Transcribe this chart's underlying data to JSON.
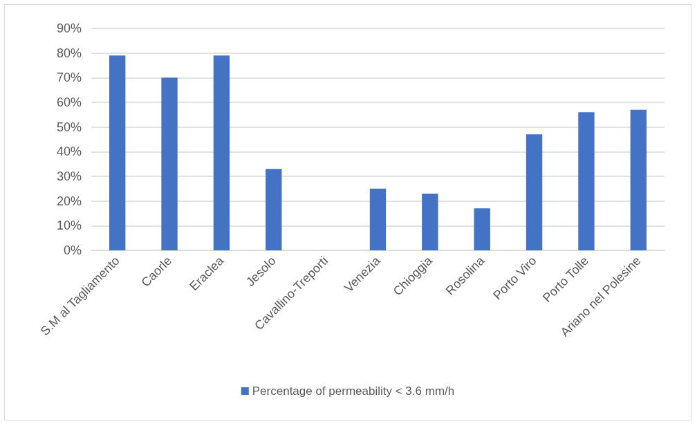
{
  "chart_data": {
    "type": "bar",
    "categories": [
      "S.M al Tagliamento",
      "Caorle",
      "Eraclea",
      "Jesolo",
      "Cavallino-Treporti",
      "Venezia",
      "Chioggia",
      "Rosolina",
      "Porto Viro",
      "Porto Tolle",
      "Ariano nel Polesine"
    ],
    "series": [
      {
        "name": "Percentage of permeability < 3.6 mm/h",
        "color": "#4472c4",
        "values": [
          79,
          70,
          79,
          33,
          0,
          25,
          23,
          17,
          47,
          56,
          57
        ]
      }
    ],
    "ylim": [
      0,
      90
    ],
    "yticks": [
      {
        "value": 0,
        "label": "0%"
      },
      {
        "value": 10,
        "label": "10%"
      },
      {
        "value": 20,
        "label": "20%"
      },
      {
        "value": 30,
        "label": "30%"
      },
      {
        "value": 40,
        "label": "40%"
      },
      {
        "value": 50,
        "label": "50%"
      },
      {
        "value": 60,
        "label": "60%"
      },
      {
        "value": 70,
        "label": "70%"
      },
      {
        "value": 80,
        "label": "80%"
      },
      {
        "value": 90,
        "label": "90%"
      }
    ],
    "grid": "y",
    "legend": "bottom"
  }
}
